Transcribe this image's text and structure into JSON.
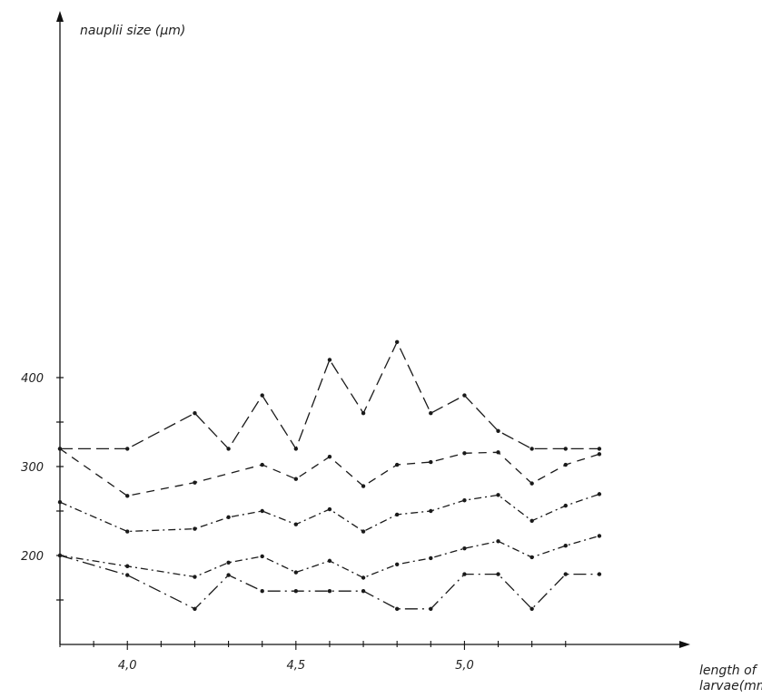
{
  "chart_data": {
    "type": "line",
    "title": "",
    "ylabel": "nauplii size (μm)",
    "xlabel_lines": [
      "length of",
      "larvae(mm)"
    ],
    "xlim": [
      3.8,
      5.5
    ],
    "ylim": [
      100,
      450
    ],
    "x_ticks": [
      4.0,
      4.5,
      5.0
    ],
    "x_tick_labels": [
      "4,0",
      "4,5",
      "5,0"
    ],
    "y_ticks": [
      200,
      300,
      400
    ],
    "y_tick_labels": [
      "200",
      "300",
      "400"
    ],
    "grid": false,
    "series": [
      {
        "style": "long-dash",
        "points": [
          [
            3.8,
            320
          ],
          [
            4.0,
            320
          ],
          [
            4.2,
            360
          ],
          [
            4.3,
            320
          ],
          [
            4.4,
            380
          ],
          [
            4.5,
            320
          ],
          [
            4.6,
            420
          ],
          [
            4.7,
            360
          ],
          [
            4.8,
            440
          ],
          [
            4.9,
            360
          ],
          [
            5.0,
            380
          ],
          [
            5.1,
            340
          ],
          [
            5.2,
            320
          ],
          [
            5.3,
            320
          ],
          [
            5.4,
            320
          ]
        ]
      },
      {
        "style": "dashed",
        "points": [
          [
            3.8,
            320
          ],
          [
            4.0,
            267
          ],
          [
            4.2,
            282
          ],
          [
            4.4,
            302
          ],
          [
            4.5,
            286
          ],
          [
            4.6,
            311
          ],
          [
            4.7,
            278
          ],
          [
            4.8,
            302
          ],
          [
            4.9,
            305
          ],
          [
            5.0,
            315
          ],
          [
            5.1,
            316
          ],
          [
            5.2,
            281
          ],
          [
            5.3,
            302
          ],
          [
            5.4,
            314
          ]
        ]
      },
      {
        "style": "dash-dot",
        "points": [
          [
            3.8,
            260
          ],
          [
            4.0,
            227
          ],
          [
            4.2,
            230
          ],
          [
            4.3,
            243
          ],
          [
            4.4,
            250
          ],
          [
            4.5,
            235
          ],
          [
            4.6,
            252
          ],
          [
            4.7,
            227
          ],
          [
            4.8,
            246
          ],
          [
            4.9,
            250
          ],
          [
            5.0,
            262
          ],
          [
            5.1,
            268
          ],
          [
            5.2,
            239
          ],
          [
            5.3,
            256
          ],
          [
            5.4,
            269
          ]
        ]
      },
      {
        "style": "dash-dot",
        "points": [
          [
            3.8,
            200
          ],
          [
            4.0,
            188
          ],
          [
            4.2,
            176
          ],
          [
            4.3,
            192
          ],
          [
            4.4,
            199
          ],
          [
            4.5,
            181
          ],
          [
            4.6,
            194
          ],
          [
            4.7,
            175
          ],
          [
            4.8,
            190
          ],
          [
            4.9,
            197
          ],
          [
            5.0,
            208
          ],
          [
            5.1,
            216
          ],
          [
            5.2,
            198
          ],
          [
            5.3,
            211
          ],
          [
            5.4,
            222
          ]
        ]
      },
      {
        "style": "long-dash-dot",
        "points": [
          [
            3.8,
            200
          ],
          [
            4.0,
            178
          ],
          [
            4.2,
            140
          ],
          [
            4.3,
            178
          ],
          [
            4.4,
            160
          ],
          [
            4.5,
            160
          ],
          [
            4.6,
            160
          ],
          [
            4.7,
            160
          ],
          [
            4.8,
            140
          ],
          [
            4.9,
            140
          ],
          [
            5.0,
            179
          ],
          [
            5.1,
            179
          ],
          [
            5.2,
            140
          ],
          [
            5.3,
            179
          ],
          [
            5.4,
            179
          ]
        ]
      }
    ],
    "colors": {
      "line": "#1a1a1a",
      "axis": "#111111",
      "background": "#ffffff"
    }
  }
}
